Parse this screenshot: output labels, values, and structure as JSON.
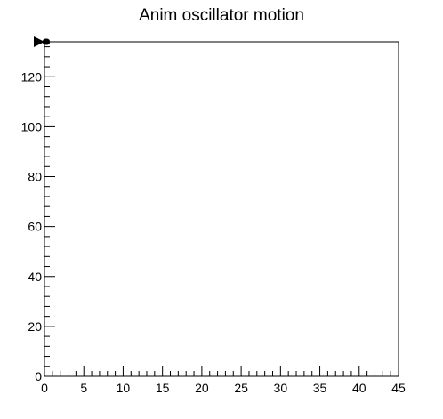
{
  "chart_data": {
    "type": "scatter",
    "title": "Anim oscillator motion",
    "xlabel": "",
    "ylabel": "",
    "xlim": [
      0,
      45
    ],
    "ylim": [
      0,
      134
    ],
    "x_ticks": [
      0,
      5,
      10,
      15,
      20,
      25,
      30,
      35,
      40,
      45
    ],
    "y_ticks": [
      0,
      20,
      40,
      60,
      80,
      100,
      120
    ],
    "grid": false,
    "legend": "none",
    "series": [
      {
        "marker": "triangle-right",
        "color": "#000000",
        "points": [
          {
            "x": 0,
            "y": 134
          }
        ]
      },
      {
        "marker": "circle",
        "color": "#000000",
        "points": [
          {
            "x": 0.15,
            "y": 134
          },
          {
            "x": 0.3,
            "y": 134
          }
        ]
      }
    ]
  }
}
